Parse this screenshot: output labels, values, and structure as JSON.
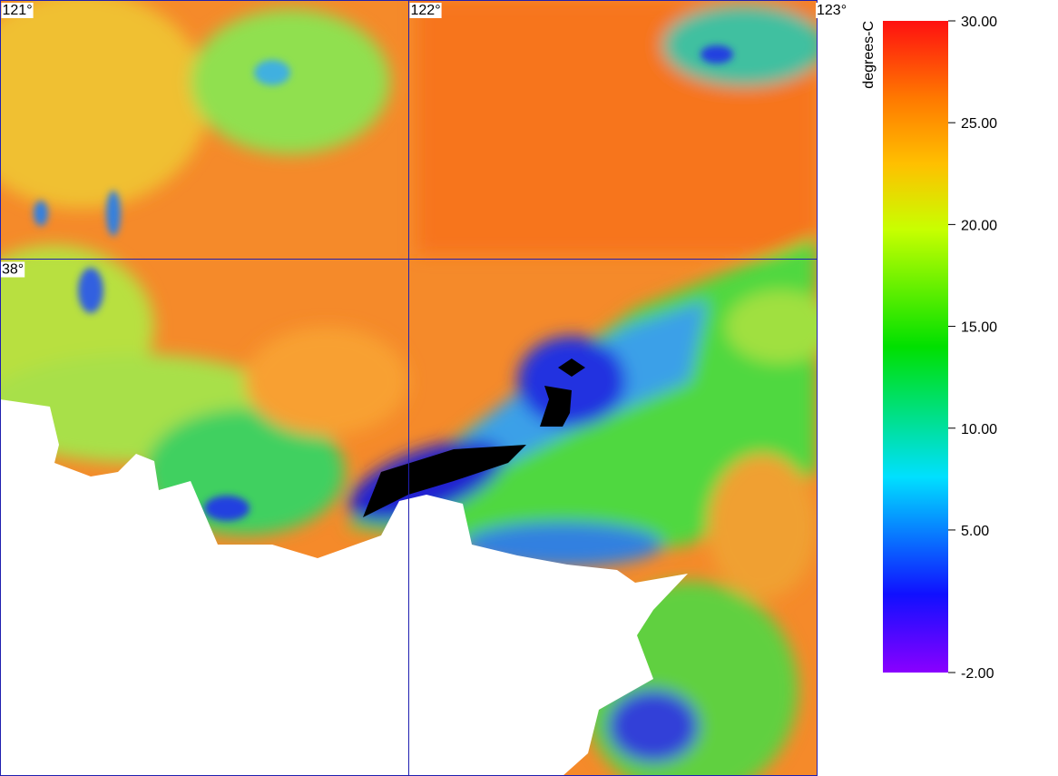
{
  "map": {
    "lon_lim": [
      121,
      123
    ],
    "lat_lim": [
      37,
      38.5
    ],
    "lon_ticks": [
      {
        "value": 121,
        "label": "121°"
      },
      {
        "value": 122,
        "label": "122°"
      },
      {
        "value": 123,
        "label": "123°"
      }
    ],
    "lat_ticks": [
      {
        "value": 38,
        "label": "38°"
      }
    ]
  },
  "colorbar": {
    "unit": "degrees-C",
    "range": [
      -2,
      30
    ],
    "ticks": [
      {
        "value": 30,
        "label": "30.00"
      },
      {
        "value": 25,
        "label": "25.00"
      },
      {
        "value": 20,
        "label": "20.00"
      },
      {
        "value": 15,
        "label": "15.00"
      },
      {
        "value": 10,
        "label": "10.00"
      },
      {
        "value": 5,
        "label": "5.00"
      },
      {
        "value": -2,
        "label": "-2.00"
      }
    ]
  }
}
